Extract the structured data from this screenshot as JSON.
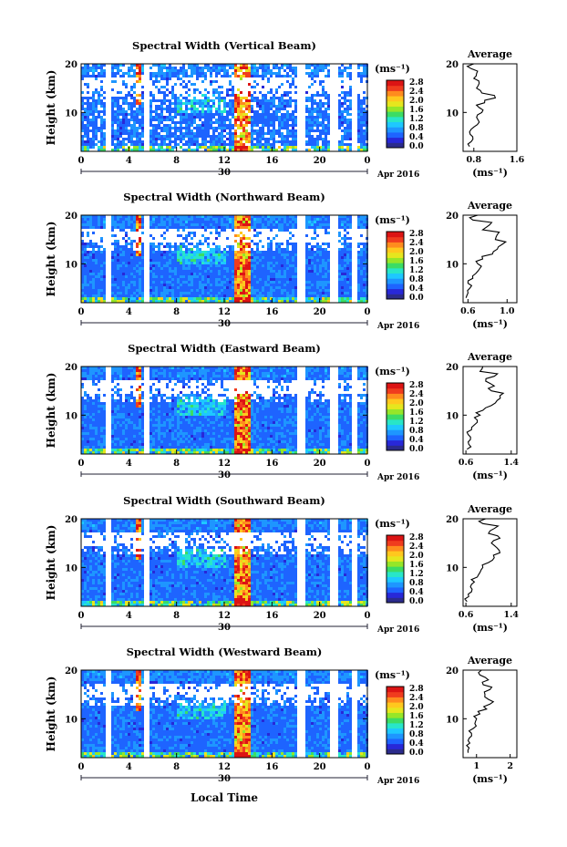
{
  "figure": {
    "colorbar_unit": "(ms⁻¹)",
    "colorbar_ticks": [
      "0.0",
      "0.4",
      "0.8",
      "1.2",
      "1.6",
      "2.0",
      "2.4",
      "2.8"
    ],
    "x_ticks": [
      "0",
      "4",
      "8",
      "12",
      "16",
      "20",
      "0"
    ],
    "date_day": "30",
    "date_month": "Apr 2016",
    "x_axis_label": "Local Time",
    "y_axis_label": "Height (km)",
    "y_ticks": [
      "10",
      "20"
    ],
    "avg_title": "Average",
    "avg_xlabel": "(ms⁻¹)",
    "colors": [
      "#2b2b8c",
      "#2828d8",
      "#1e64ff",
      "#1e96ff",
      "#1ec8ff",
      "#28e6c8",
      "#3cdc64",
      "#96e628",
      "#e6e61e",
      "#ffc81e",
      "#ff8c1e",
      "#f03c1e",
      "#dc1414"
    ]
  },
  "chart_data": [
    {
      "type": "heatmap",
      "title": "Spectral Width (Vertical Beam)",
      "xlabel": "",
      "ylabel": "Height (km)",
      "xlim": [
        0,
        24
      ],
      "ylim": [
        2,
        20
      ],
      "clim": [
        0,
        3.0
      ],
      "gaps_hours": [
        [
          2.0,
          2.4
        ],
        [
          5.2,
          5.6
        ],
        [
          18.0,
          18.6
        ],
        [
          20.8,
          21.4
        ],
        [
          22.6,
          23.0
        ]
      ],
      "avg": {
        "xticks": [
          "0.8",
          "1.6"
        ],
        "xlim": [
          0.6,
          1.6
        ],
        "heights": [
          3,
          4,
          5,
          6,
          7,
          8,
          9,
          10,
          11,
          12,
          13,
          14,
          15,
          16,
          17,
          18,
          19,
          20
        ],
        "values": [
          0.72,
          0.75,
          0.78,
          0.72,
          0.8,
          0.9,
          0.85,
          0.95,
          0.9,
          1.0,
          1.2,
          0.95,
          0.85,
          0.9,
          0.8,
          0.85,
          0.75,
          0.8
        ]
      }
    },
    {
      "type": "heatmap",
      "title": "Spectral Width (Northward Beam)",
      "xlabel": "",
      "ylabel": "Height (km)",
      "xlim": [
        0,
        24
      ],
      "ylim": [
        2,
        20
      ],
      "clim": [
        0,
        3.0
      ],
      "gaps_hours": [
        [
          2.0,
          2.4
        ],
        [
          5.2,
          5.6
        ],
        [
          18.0,
          18.6
        ],
        [
          20.8,
          21.4
        ],
        [
          22.6,
          23.0
        ]
      ],
      "avg": {
        "xticks": [
          "0.6",
          "1.0"
        ],
        "xlim": [
          0.55,
          1.1
        ],
        "heights": [
          3,
          4,
          5,
          6,
          7,
          8,
          9,
          10,
          11,
          12,
          13,
          14,
          15,
          16,
          17,
          18,
          19,
          20
        ],
        "values": [
          0.58,
          0.6,
          0.62,
          0.6,
          0.65,
          0.68,
          0.72,
          0.7,
          0.75,
          0.85,
          0.9,
          0.95,
          0.88,
          0.9,
          0.75,
          0.82,
          0.65,
          0.7
        ]
      }
    },
    {
      "type": "heatmap",
      "title": "Spectral Width (Eastward Beam)",
      "xlabel": "",
      "ylabel": "Height (km)",
      "xlim": [
        0,
        24
      ],
      "ylim": [
        2,
        20
      ],
      "clim": [
        0,
        3.0
      ],
      "gaps_hours": [
        [
          2.0,
          2.4
        ],
        [
          5.2,
          5.6
        ],
        [
          18.0,
          18.6
        ],
        [
          20.8,
          21.4
        ],
        [
          22.6,
          23.0
        ]
      ],
      "avg": {
        "xticks": [
          "0.6",
          "1.4"
        ],
        "xlim": [
          0.55,
          1.5
        ],
        "heights": [
          3,
          4,
          5,
          6,
          7,
          8,
          9,
          10,
          11,
          12,
          13,
          14,
          15,
          16,
          17,
          18,
          19,
          20
        ],
        "values": [
          0.62,
          0.65,
          0.68,
          0.64,
          0.7,
          0.75,
          0.8,
          0.85,
          0.9,
          1.05,
          1.15,
          1.2,
          1.05,
          1.1,
          0.95,
          1.1,
          0.85,
          0.9
        ]
      }
    },
    {
      "type": "heatmap",
      "title": "Spectral Width (Southward Beam)",
      "xlabel": "",
      "ylabel": "Height (km)",
      "xlim": [
        0,
        24
      ],
      "ylim": [
        2,
        20
      ],
      "clim": [
        0,
        3.0
      ],
      "gaps_hours": [
        [
          2.0,
          2.4
        ],
        [
          5.2,
          5.6
        ],
        [
          18.0,
          18.6
        ],
        [
          20.8,
          21.4
        ],
        [
          22.6,
          23.0
        ]
      ],
      "avg": {
        "xticks": [
          "0.6",
          "1.4"
        ],
        "xlim": [
          0.55,
          1.5
        ],
        "heights": [
          3,
          4,
          5,
          6,
          7,
          8,
          9,
          10,
          11,
          12,
          13,
          14,
          15,
          16,
          17,
          18,
          19,
          20
        ],
        "values": [
          0.62,
          0.65,
          0.7,
          0.68,
          0.75,
          0.8,
          0.85,
          0.9,
          1.0,
          1.1,
          1.2,
          1.15,
          1.05,
          1.2,
          1.0,
          1.1,
          0.9,
          0.95
        ]
      }
    },
    {
      "type": "heatmap",
      "title": "Spectral Width (Westward Beam)",
      "xlabel": "Local Time",
      "ylabel": "Height (km)",
      "xlim": [
        0,
        24
      ],
      "ylim": [
        2,
        20
      ],
      "clim": [
        0,
        3.0
      ],
      "gaps_hours": [
        [
          2.0,
          2.4
        ],
        [
          5.2,
          5.6
        ],
        [
          18.0,
          18.6
        ],
        [
          20.8,
          21.4
        ],
        [
          22.6,
          23.0
        ]
      ],
      "avg": {
        "xticks": [
          "1",
          "2"
        ],
        "xlim": [
          0.6,
          2.2
        ],
        "heights": [
          3,
          4,
          5,
          6,
          7,
          8,
          9,
          10,
          11,
          12,
          13,
          14,
          15,
          16,
          17,
          18,
          19,
          20
        ],
        "values": [
          0.75,
          0.78,
          0.8,
          0.78,
          0.85,
          0.9,
          0.95,
          1.0,
          1.1,
          1.3,
          1.4,
          1.35,
          1.25,
          1.4,
          1.2,
          1.35,
          1.1,
          1.15
        ]
      }
    }
  ]
}
